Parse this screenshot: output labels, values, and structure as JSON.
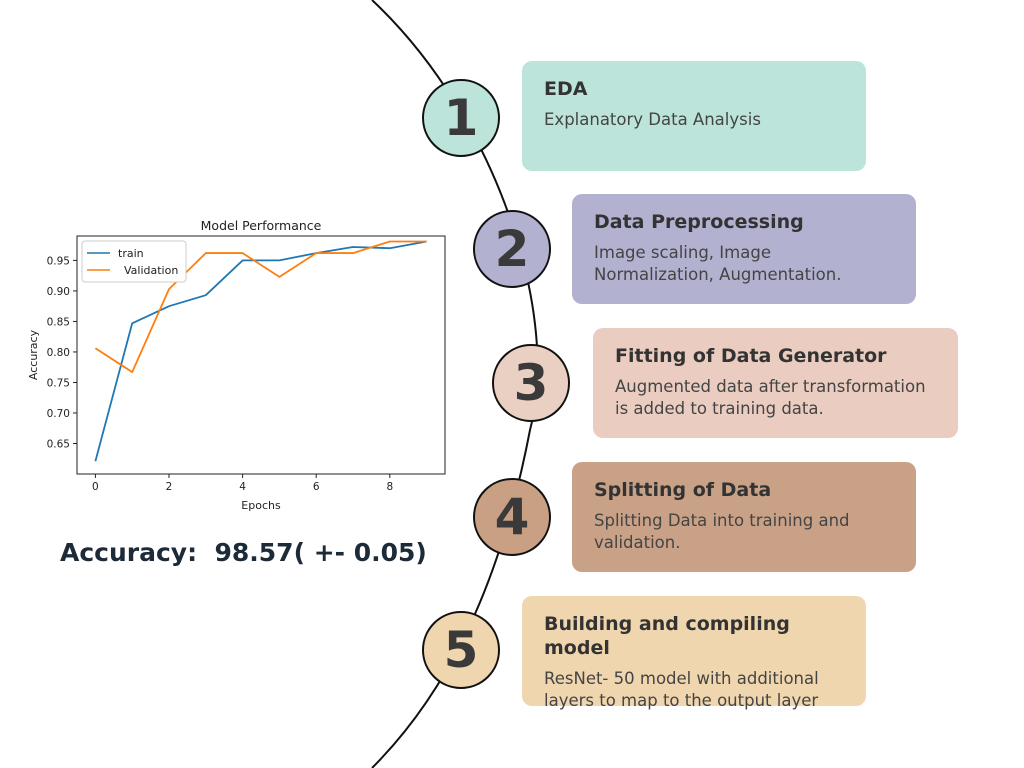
{
  "steps": [
    {
      "number": "1",
      "title": "EDA",
      "description": "Explanatory Data Analysis",
      "circle_color": "#bde4da",
      "card_color": "#bde4da"
    },
    {
      "number": "2",
      "title": "Data Preprocessing",
      "description": "Image scaling, Image Normalization, Augmentation.",
      "circle_color": "#b3b1d0",
      "card_color": "#b3b1d0"
    },
    {
      "number": "3",
      "title": "Fitting of Data Generator",
      "description": "Augmented data after transformation is added to training data.",
      "circle_color": "#ead0c2",
      "card_color": "#eacdc0"
    },
    {
      "number": "4",
      "title": "Splitting of Data",
      "description": "Splitting Data into training and validation.",
      "circle_color": "#c9a084",
      "card_color": "#c9a186"
    },
    {
      "number": "5",
      "title": "Building and compiling model",
      "description": "ResNet- 50 model with additional layers to map to the output layer",
      "circle_color": "#f0d6ae",
      "card_color": "#f0d6ae"
    }
  ],
  "accuracy_text": "Accuracy:  98.57( +- 0.05)",
  "chart_data": {
    "type": "line",
    "title": "Model Performance",
    "xlabel": "Epochs",
    "ylabel": "Accuracy",
    "x": [
      0,
      1,
      2,
      3,
      4,
      5,
      6,
      7,
      8,
      9
    ],
    "xlim": [
      -0.5,
      9.5
    ],
    "ylim": [
      0.6,
      0.99
    ],
    "xticks": [
      0,
      2,
      4,
      6,
      8
    ],
    "yticks": [
      0.65,
      0.7,
      0.75,
      0.8,
      0.85,
      0.9,
      0.95
    ],
    "ytick_labels": [
      "0.65",
      "0.70",
      "0.75",
      "0.80",
      "0.85",
      "0.90",
      "0.95"
    ],
    "legend_position": "upper-left",
    "series": [
      {
        "name": "train",
        "color": "#1f77b4",
        "values": [
          0.621,
          0.847,
          0.875,
          0.893,
          0.95,
          0.95,
          0.962,
          0.972,
          0.97,
          0.981
        ]
      },
      {
        "name": "Validation",
        "color": "#ff7f0e",
        "values": [
          0.806,
          0.767,
          0.903,
          0.962,
          0.962,
          0.923,
          0.962,
          0.962,
          0.981,
          0.981
        ]
      }
    ]
  }
}
